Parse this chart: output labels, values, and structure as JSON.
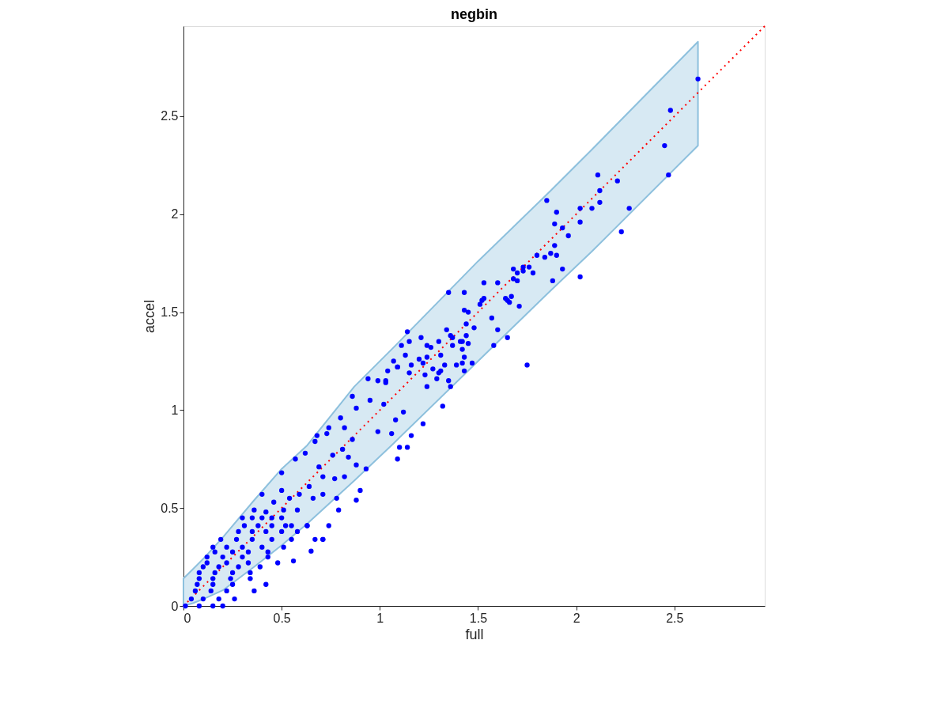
{
  "chart_data": {
    "type": "scatter",
    "title": "negbin",
    "xlabel": "full",
    "ylabel": "accel",
    "xlim": [
      0,
      2.96
    ],
    "ylim": [
      0,
      2.96
    ],
    "xticks": [
      0,
      0.5,
      1,
      1.5,
      2,
      2.5
    ],
    "yticks": [
      0,
      0.5,
      1,
      1.5,
      2,
      2.5
    ],
    "grid": false,
    "series": [
      {
        "type": "area",
        "color": "#8dc0dd",
        "x": [
          0,
          0.05,
          0.1,
          0.2,
          0.36,
          0.5,
          0.63,
          0.87,
          1.07,
          1.5,
          1.87,
          2.08,
          2.62
        ],
        "values": [
          null,
          null,
          null,
          null,
          null,
          null,
          null,
          null,
          null,
          null,
          null,
          null,
          null
        ],
        "lower": [
          0,
          0.015,
          0.035,
          0.08,
          0.2,
          0.31,
          0.42,
          0.64,
          0.83,
          1.25,
          1.61,
          1.81,
          2.35
        ],
        "upper": [
          0.14,
          0.19,
          0.24,
          0.35,
          0.54,
          0.7,
          0.82,
          1.12,
          1.32,
          1.76,
          2.12,
          2.33,
          2.88
        ]
      },
      {
        "type": "line",
        "color": "#ff0000",
        "line_style": "dotted",
        "x": [
          0,
          2.96
        ],
        "values": [
          0,
          2.96
        ]
      },
      {
        "type": "scatter",
        "color": "#0000ff",
        "marker": "circle",
        "x": [
          2.62,
          2.48,
          2.45,
          2.47,
          2.11,
          2.21,
          2.12,
          2.12,
          2.02,
          2.08,
          2.27,
          2.02,
          2.23,
          1.93,
          1.96,
          1.93,
          2.02,
          1.85,
          1.9,
          1.89,
          1.89,
          1.87,
          1.84,
          1.9,
          1.88,
          1.8,
          1.68,
          1.73,
          1.76,
          1.7,
          1.73,
          1.78,
          1.68,
          1.7,
          1.53,
          1.6,
          1.35,
          1.43,
          1.52,
          1.53,
          1.64,
          1.65,
          1.66,
          1.67,
          1.71,
          1.51,
          1.43,
          1.45,
          1.57,
          1.44,
          1.48,
          1.6,
          1.34,
          1.14,
          1.21,
          1.36,
          1.37,
          1.44,
          1.65,
          1.15,
          1.3,
          1.41,
          1.42,
          1.45,
          1.11,
          1.24,
          1.37,
          1.42,
          1.58,
          1.26,
          1.13,
          1.2,
          1.24,
          1.31,
          1.43,
          1.42,
          1.47,
          1.33,
          1.22,
          1.39,
          1.43,
          1.07,
          1.09,
          1.16,
          1.27,
          1.31,
          1.23,
          1.3,
          1.04,
          1.15,
          1.35,
          1.29,
          1.36,
          1.24,
          1.32,
          1.22,
          1.16,
          1.75,
          0.99,
          0.94,
          1.03,
          0.86,
          1.03,
          1.09,
          0.8,
          0.88,
          0.95,
          1.02,
          1.08,
          1.12,
          0.68,
          0.74,
          0.82,
          0.86,
          0.99,
          1.06,
          1.1,
          1.14,
          1.09,
          0.93,
          0.9,
          0.88,
          0.79,
          0.74,
          0.65,
          0.56,
          0.5,
          0.57,
          0.62,
          0.67,
          0.73,
          0.76,
          0.81,
          0.84,
          0.88,
          0.69,
          0.71,
          0.77,
          0.82,
          0.64,
          0.59,
          0.66,
          0.71,
          0.78,
          0.5,
          0.54,
          0.46,
          0.4,
          0.36,
          0.42,
          0.51,
          0.58,
          0.63,
          0.55,
          0.67,
          0.71,
          0.3,
          0.35,
          0.4,
          0.45,
          0.5,
          0.31,
          0.38,
          0.45,
          0.52,
          0.63,
          0.28,
          0.35,
          0.42,
          0.5,
          0.58,
          0.19,
          0.27,
          0.35,
          0.45,
          0.55,
          0.71,
          0.15,
          0.22,
          0.3,
          0.4,
          0.51,
          0.16,
          0.25,
          0.33,
          0.43,
          0.12,
          0.2,
          0.3,
          0.43,
          0.12,
          0.22,
          0.33,
          0.48,
          0.1,
          0.18,
          0.28,
          0.39,
          0.08,
          0.16,
          0.25,
          0.34,
          0.08,
          0.15,
          0.24,
          0.34,
          0.07,
          0.15,
          0.25,
          0.42,
          0.06,
          0.14,
          0.22,
          0.36,
          0.04,
          0.1,
          0.18,
          0.26,
          0.01,
          0.08,
          0.15,
          0.2
        ],
        "values": [
          2.69,
          2.53,
          2.35,
          2.2,
          2.2,
          2.17,
          2.12,
          2.06,
          2.03,
          2.03,
          2.03,
          1.96,
          1.91,
          1.93,
          1.89,
          1.72,
          1.68,
          2.07,
          2.01,
          1.95,
          1.84,
          1.8,
          1.78,
          1.79,
          1.66,
          1.79,
          1.72,
          1.73,
          1.73,
          1.7,
          1.71,
          1.7,
          1.67,
          1.66,
          1.65,
          1.65,
          1.6,
          1.6,
          1.56,
          1.57,
          1.57,
          1.56,
          1.55,
          1.58,
          1.53,
          1.54,
          1.51,
          1.5,
          1.47,
          1.44,
          1.42,
          1.41,
          1.41,
          1.4,
          1.37,
          1.38,
          1.37,
          1.38,
          1.37,
          1.35,
          1.35,
          1.35,
          1.35,
          1.34,
          1.33,
          1.33,
          1.33,
          1.31,
          1.33,
          1.32,
          1.28,
          1.26,
          1.27,
          1.28,
          1.27,
          1.24,
          1.24,
          1.23,
          1.24,
          1.23,
          1.2,
          1.25,
          1.22,
          1.23,
          1.21,
          1.2,
          1.18,
          1.19,
          1.2,
          1.19,
          1.15,
          1.16,
          1.12,
          1.12,
          1.02,
          0.93,
          0.87,
          1.23,
          1.15,
          1.16,
          1.15,
          1.07,
          1.14,
          1.22,
          0.96,
          1.01,
          1.05,
          1.03,
          0.95,
          0.99,
          0.87,
          0.91,
          0.91,
          0.85,
          0.89,
          0.88,
          0.81,
          0.81,
          0.75,
          0.7,
          0.59,
          0.54,
          0.49,
          0.41,
          0.28,
          0.23,
          0.68,
          0.75,
          0.78,
          0.84,
          0.88,
          0.77,
          0.8,
          0.76,
          0.72,
          0.71,
          0.66,
          0.65,
          0.66,
          0.61,
          0.57,
          0.55,
          0.57,
          0.55,
          0.59,
          0.55,
          0.53,
          0.57,
          0.49,
          0.48,
          0.49,
          0.49,
          0.41,
          0.41,
          0.34,
          0.34,
          0.45,
          0.45,
          0.45,
          0.45,
          0.45,
          0.41,
          0.41,
          0.41,
          0.41,
          0.41,
          0.38,
          0.38,
          0.38,
          0.38,
          0.38,
          0.34,
          0.34,
          0.34,
          0.34,
          0.34,
          0.34,
          0.3,
          0.3,
          0.3,
          0.3,
          0.3,
          0.276,
          0.276,
          0.276,
          0.276,
          0.25,
          0.25,
          0.25,
          0.25,
          0.22,
          0.22,
          0.22,
          0.22,
          0.2,
          0.2,
          0.2,
          0.2,
          0.17,
          0.17,
          0.17,
          0.17,
          0.14,
          0.14,
          0.14,
          0.14,
          0.11,
          0.11,
          0.11,
          0.11,
          0.077,
          0.077,
          0.077,
          0.077,
          0.036,
          0.036,
          0.036,
          0.036,
          0,
          0,
          0,
          0
        ]
      }
    ]
  }
}
